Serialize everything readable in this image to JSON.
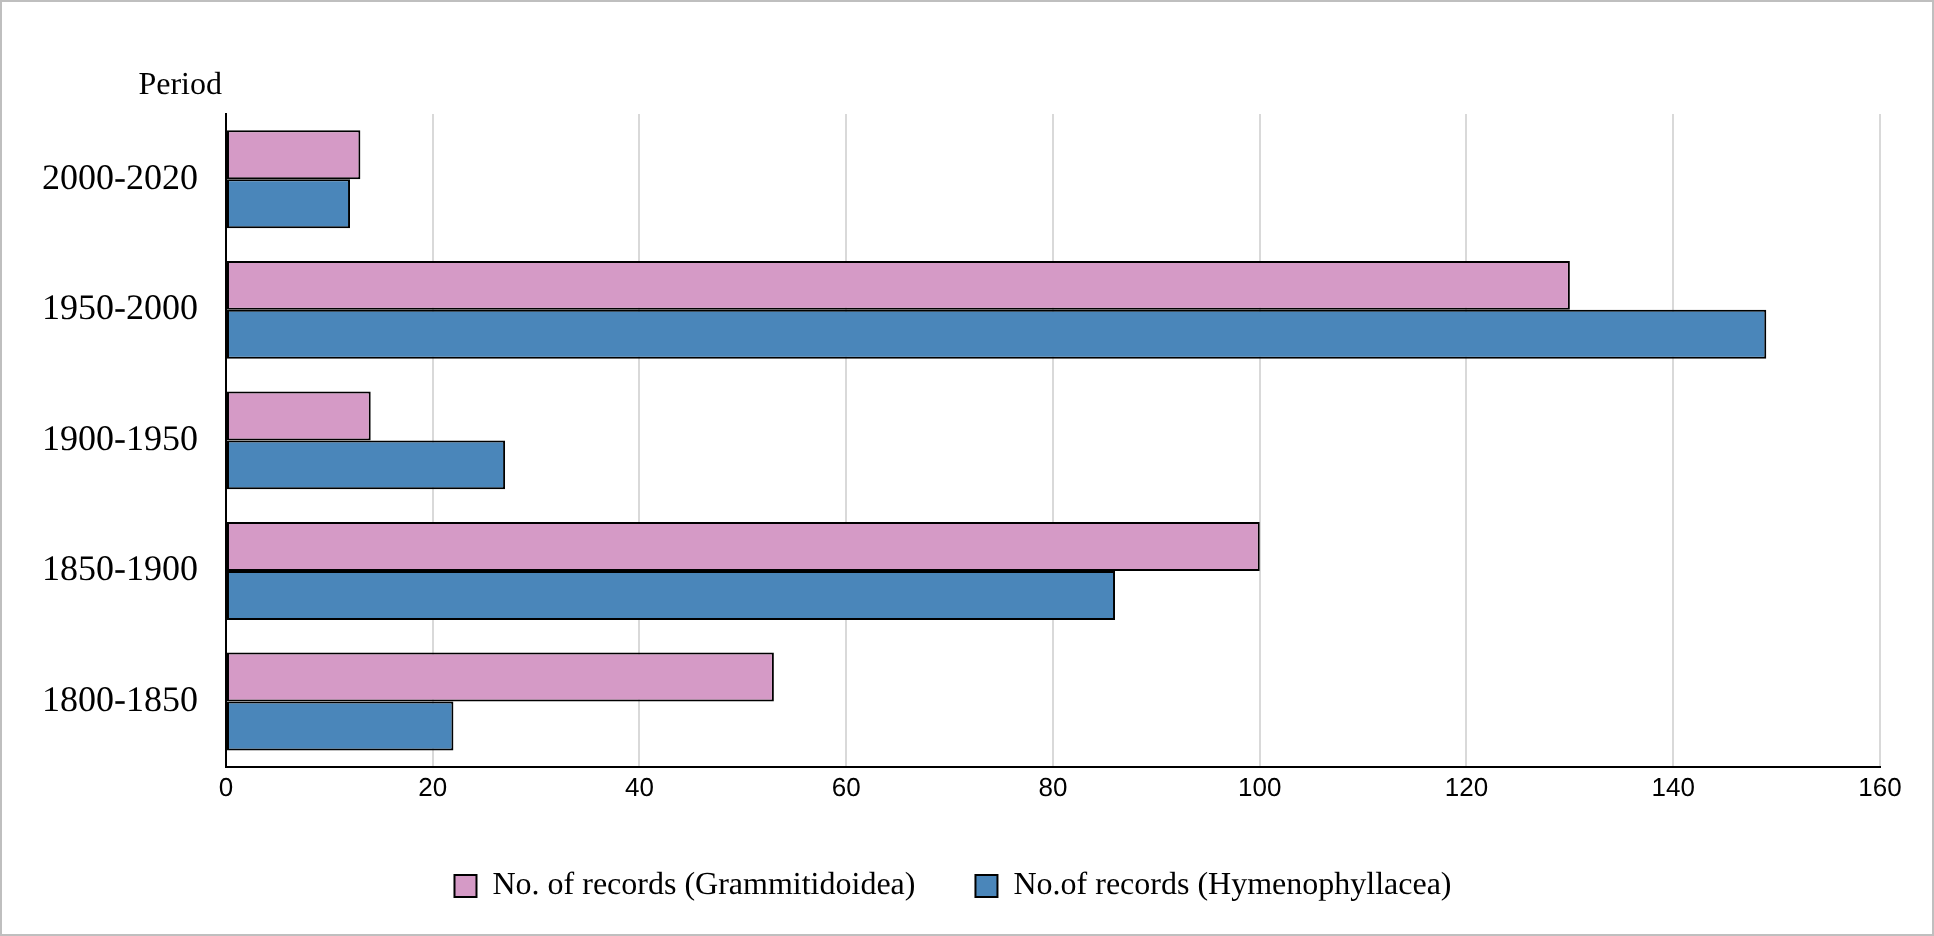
{
  "chart_data": {
    "type": "bar",
    "orientation": "horizontal",
    "ylabel": "Period",
    "categories": [
      "2000-2020",
      "1950-2000",
      "1900-1950",
      "1850-1900",
      "1800-1850"
    ],
    "series": [
      {
        "name": "No. of records (Grammitidoidea)",
        "color": "#d59ac6",
        "values": [
          13,
          130,
          14,
          100,
          53
        ]
      },
      {
        "name": "No.of records (Hymenophyllacea)",
        "color": "#4a86ba",
        "values": [
          12,
          149,
          27,
          86,
          22
        ]
      }
    ],
    "xlim": [
      0,
      160
    ],
    "xticks": [
      0,
      20,
      40,
      60,
      80,
      100,
      120,
      140,
      160
    ],
    "grid": "x",
    "legend": "bottom"
  }
}
